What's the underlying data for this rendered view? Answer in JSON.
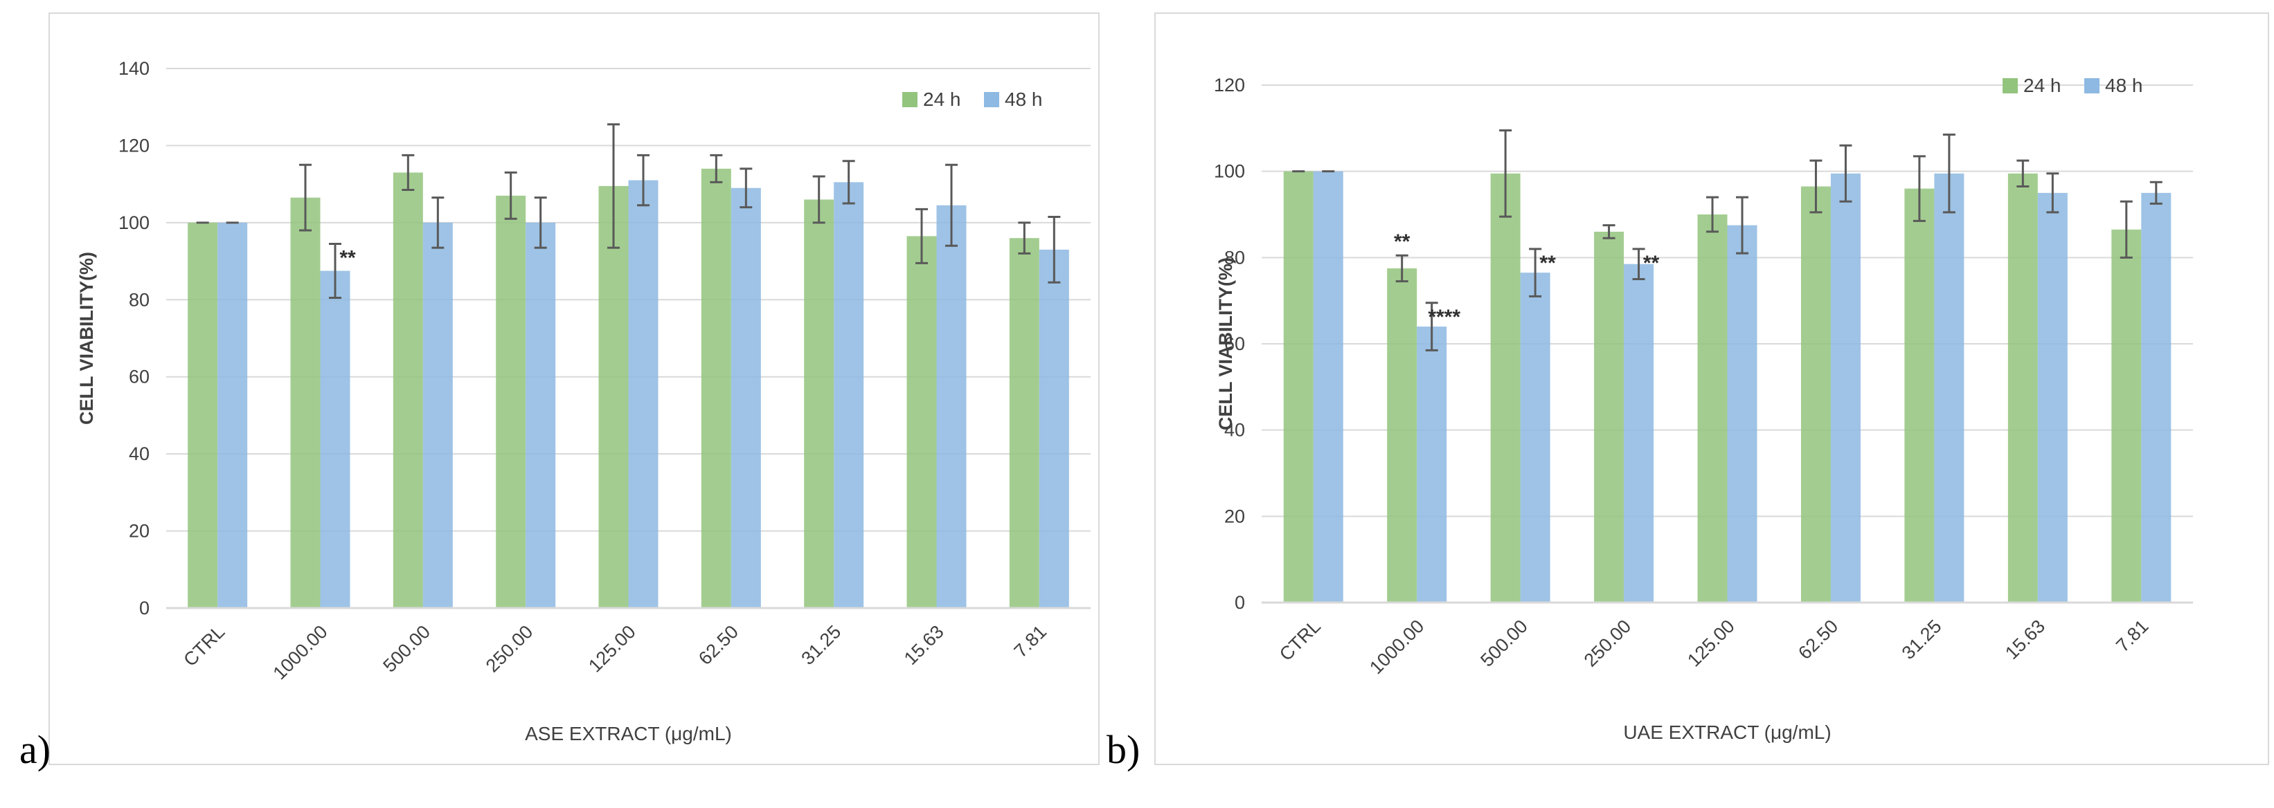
{
  "colors": {
    "h24": "#93c47d",
    "h48": "#8db9e2",
    "grid": "#d9d9d9",
    "axis": "#595959",
    "text": "#404040"
  },
  "chart_data": [
    {
      "type": "bar",
      "panel_label": "a)",
      "xlabel": "ASE EXTRACT (μg/mL)",
      "ylabel": "CELL VIABILITY(%)",
      "ylim": [
        0,
        140
      ],
      "yticks": [
        "0",
        "20",
        "40",
        "60",
        "80",
        "100",
        "120",
        "140"
      ],
      "categories": [
        "CTRL",
        "1000.00",
        "500.00",
        "250.00",
        "125.00",
        "62.50",
        "31.25",
        "15.63",
        "7.81"
      ],
      "legend": [
        "24 h",
        "48 h"
      ],
      "legend_position": "top-right",
      "series": [
        {
          "name": "24 h",
          "values": [
            100,
            106.5,
            113,
            107,
            109.5,
            114,
            106,
            96.5,
            96
          ],
          "errors": [
            0,
            8.5,
            4.5,
            6,
            16,
            3.5,
            6,
            7,
            4
          ],
          "annotations": [
            "",
            "",
            "",
            "",
            "",
            "",
            "",
            "",
            ""
          ]
        },
        {
          "name": "48 h",
          "values": [
            100,
            87.5,
            100,
            100,
            111,
            109,
            110.5,
            104.5,
            93
          ],
          "errors": [
            0,
            7,
            6.5,
            6.5,
            6.5,
            5,
            5.5,
            10.5,
            8.5
          ],
          "annotations": [
            "",
            "**",
            "",
            "",
            "",
            "",
            "",
            "",
            ""
          ]
        }
      ]
    },
    {
      "type": "bar",
      "panel_label": "b)",
      "xlabel": "UAE EXTRACT (μg/mL)",
      "ylabel": "CELL VIABILITY(%)",
      "ylim": [
        0,
        120
      ],
      "yticks": [
        "0",
        "20",
        "40",
        "60",
        "80",
        "100",
        "120"
      ],
      "categories": [
        "CTRL",
        "1000.00",
        "500.00",
        "250.00",
        "125.00",
        "62.50",
        "31.25",
        "15.63",
        "7.81"
      ],
      "legend": [
        "24 h",
        "48 h"
      ],
      "legend_position": "top-right",
      "series": [
        {
          "name": "24 h",
          "values": [
            100,
            77.5,
            99.5,
            86,
            90,
            96.5,
            96,
            99.5,
            86.5
          ],
          "errors": [
            0,
            3,
            10,
            1.5,
            4,
            6,
            7.5,
            3,
            6.5
          ],
          "annotations": [
            "",
            "**",
            "",
            "",
            "",
            "",
            "",
            "",
            ""
          ]
        },
        {
          "name": "48 h",
          "values": [
            100,
            64,
            76.5,
            78.5,
            87.5,
            99.5,
            99.5,
            95,
            95
          ],
          "errors": [
            0,
            5.5,
            5.5,
            3.5,
            6.5,
            6.5,
            9,
            4.5,
            2.5
          ],
          "annotations": [
            "",
            "****",
            "**",
            "**",
            "",
            "",
            "",
            "",
            ""
          ]
        }
      ]
    }
  ]
}
